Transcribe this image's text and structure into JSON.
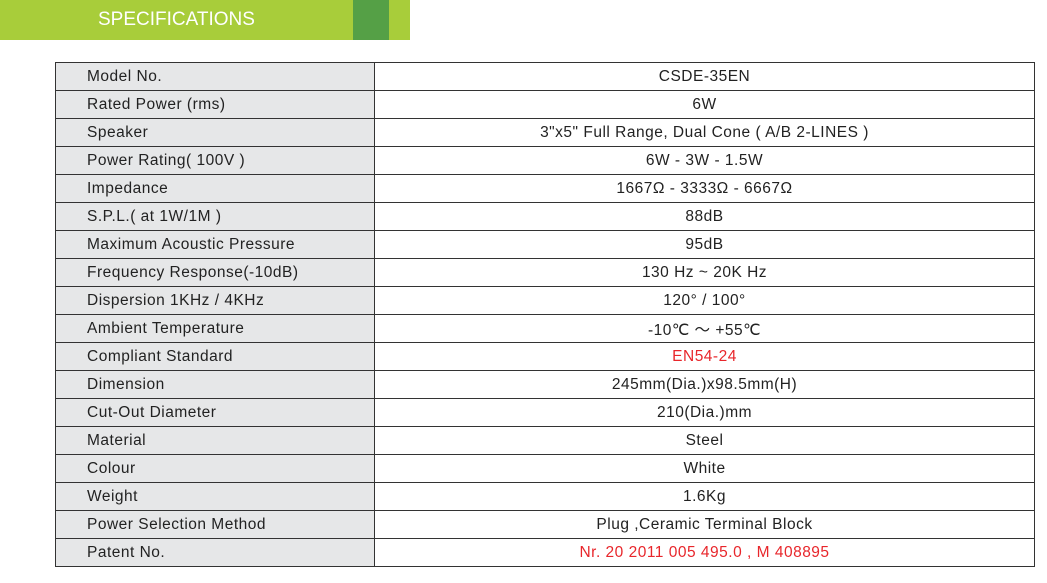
{
  "header": {
    "title": "SPECIFICATIONS",
    "colors": {
      "banner": "#a8cd3a",
      "accent": "#55a046"
    }
  },
  "specs": [
    {
      "label": "Model No.",
      "value": "CSDE-35EN"
    },
    {
      "label": "Rated Power (rms)",
      "value": "6W"
    },
    {
      "label": "Speaker",
      "value": "3\"x5\" Full Range, Dual Cone ( A/B 2-LINES )"
    },
    {
      "label": "Power Rating( 100V )",
      "value": "6W - 3W - 1.5W"
    },
    {
      "label": "Impedance",
      "value": "1667Ω - 3333Ω - 6667Ω"
    },
    {
      "label": "S.P.L.( at 1W/1M )",
      "value": "88dB"
    },
    {
      "label": "Maximum Acoustic Pressure",
      "value": "95dB"
    },
    {
      "label": "Frequency Response(-10dB)",
      "value": "130 Hz ~ 20K Hz"
    },
    {
      "label": "Dispersion 1KHz / 4KHz",
      "value": "120°  / 100°"
    },
    {
      "label": "Ambient Temperature",
      "value": "-10℃ ～ +55℃"
    },
    {
      "label": "Compliant  Standard",
      "value": "EN54-24",
      "highlight": "#e8262b"
    },
    {
      "label": "Dimension",
      "value": "245mm(Dia.)x98.5mm(H)"
    },
    {
      "label": "Cut-Out Diameter",
      "value": "210(Dia.)mm"
    },
    {
      "label": "Material",
      "value": "Steel"
    },
    {
      "label": "Colour",
      "value": "White"
    },
    {
      "label": "Weight",
      "value": "1.6Kg"
    },
    {
      "label": "Power Selection Method",
      "value": "Plug ,Ceramic Terminal Block"
    },
    {
      "label": "Patent No.",
      "value": "Nr. 20 2011 005 495.0  , M 408895",
      "highlight": "#e8262b"
    }
  ]
}
